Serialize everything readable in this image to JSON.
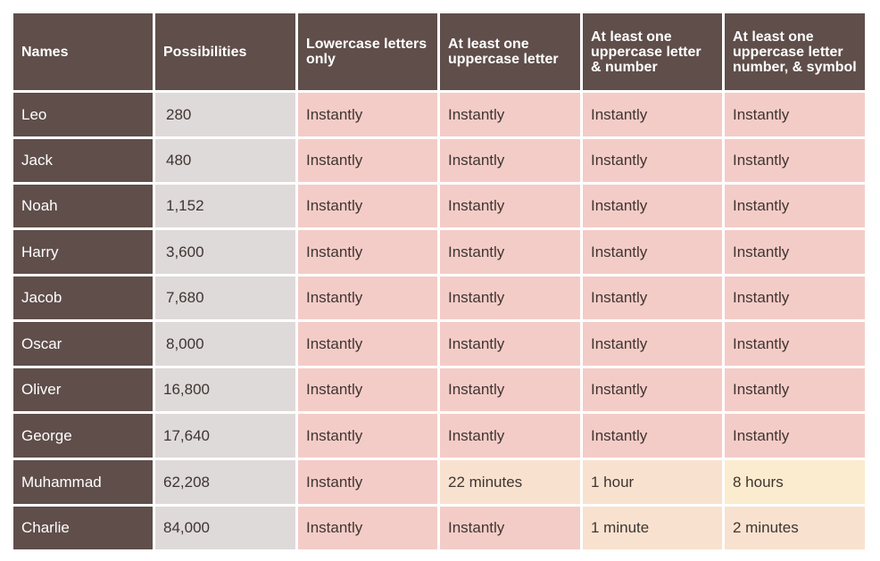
{
  "headers": [
    "Names",
    "Possibilities",
    "Lowercase letters only",
    "At least one uppercase letter",
    "At least one uppercase letter & number",
    "At least one uppercase letter number, & symbol"
  ],
  "rows": [
    {
      "name": "Leo",
      "possibilities": "280",
      "c1": "Instantly",
      "c2": "Instantly",
      "c3": "Instantly",
      "c4": "Instantly"
    },
    {
      "name": "Jack",
      "possibilities": "480",
      "c1": "Instantly",
      "c2": "Instantly",
      "c3": "Instantly",
      "c4": "Instantly"
    },
    {
      "name": "Noah",
      "possibilities": "1,152",
      "c1": "Instantly",
      "c2": "Instantly",
      "c3": "Instantly",
      "c4": "Instantly"
    },
    {
      "name": "Harry",
      "possibilities": "3,600",
      "c1": "Instantly",
      "c2": "Instantly",
      "c3": "Instantly",
      "c4": "Instantly"
    },
    {
      "name": "Jacob",
      "possibilities": "7,680",
      "c1": "Instantly",
      "c2": "Instantly",
      "c3": "Instantly",
      "c4": "Instantly"
    },
    {
      "name": "Oscar",
      "possibilities": "8,000",
      "c1": "Instantly",
      "c2": "Instantly",
      "c3": "Instantly",
      "c4": "Instantly"
    },
    {
      "name": "Oliver",
      "possibilities": "16,800",
      "c1": "Instantly",
      "c2": "Instantly",
      "c3": "Instantly",
      "c4": "Instantly"
    },
    {
      "name": "George",
      "possibilities": "17,640",
      "c1": "Instantly",
      "c2": "Instantly",
      "c3": "Instantly",
      "c4": "Instantly"
    },
    {
      "name": "Muhammad",
      "possibilities": "62,208",
      "c1": "Instantly",
      "c2": "22 minutes",
      "c3": "1 hour",
      "c4": "8 hours"
    },
    {
      "name": "Charlie",
      "possibilities": "84,000",
      "c1": "Instantly",
      "c2": "Instantly",
      "c3": "1 minute",
      "c4": "2 minutes"
    }
  ],
  "colors": {
    "header_bg": "#5f4e4a",
    "possibilities_bg": "#dedad9",
    "instant_bg": "#f4ccc7",
    "minutes_bg": "#f8e2cf",
    "hours_bg": "#fbeccf"
  }
}
